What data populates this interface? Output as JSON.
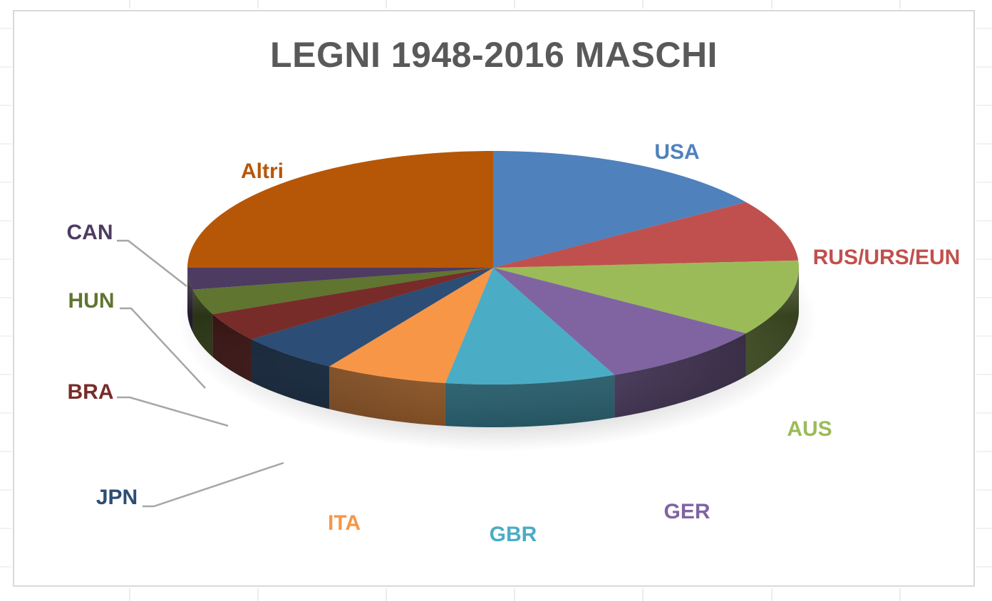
{
  "chart_data": {
    "type": "pie",
    "title": "LEGNI 1948-2016 MASCHI",
    "style": "3d-exploded-none",
    "categories": [
      "USA",
      "RUS/URS/EUN",
      "AUS",
      "GER",
      "GBR",
      "ITA",
      "JPN",
      "BRA",
      "HUN",
      "CAN",
      "Altri"
    ],
    "values": [
      15.5,
      8.5,
      10.5,
      9.0,
      9.0,
      6.5,
      5.5,
      4.0,
      3.5,
      3.0,
      25.0
    ],
    "unit": "% (estimated from slice sizes)",
    "colors": [
      "#4f81bd",
      "#c0504d",
      "#9bbb59",
      "#8064a2",
      "#4bacc6",
      "#f79646",
      "#2c4d75",
      "#772c2a",
      "#5f7530",
      "#4d3b62",
      "#b65708"
    ],
    "label_colors": [
      "#4f81bd",
      "#c0504d",
      "#9bbb59",
      "#8064a2",
      "#4bacc6",
      "#f79646",
      "#2c4d75",
      "#772c2a",
      "#5f7530",
      "#4d3b62",
      "#b65708"
    ],
    "legend": "none",
    "grid": false
  }
}
